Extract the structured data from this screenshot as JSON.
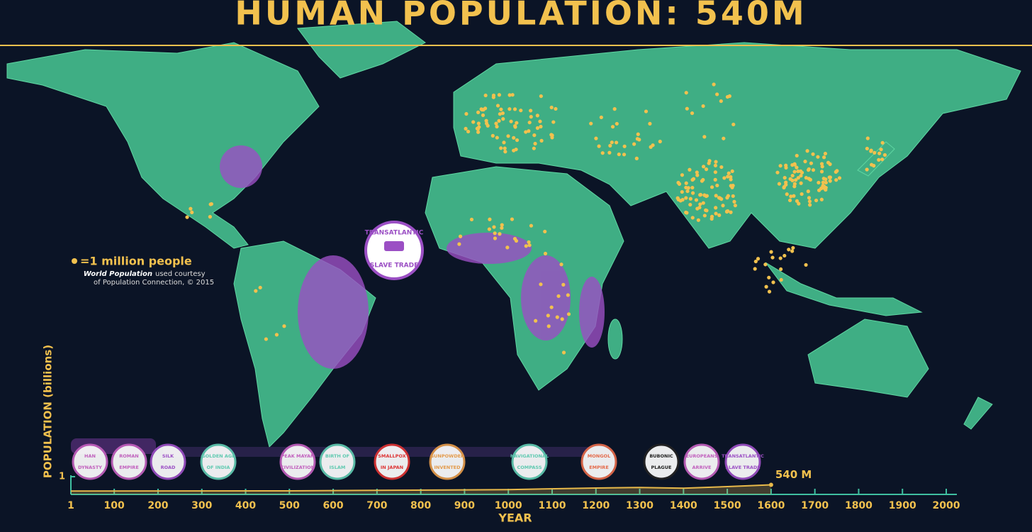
{
  "title": "HUMAN POPULATION: 540M",
  "legend": {
    "label": "=1 million people",
    "credit_italic": "World Population",
    "credit_rest": "used courtesy",
    "credit_line2": "of Population Connection, © 2015"
  },
  "callout": [
    "TRANSATLANTIC",
    "SLAVE TRADE"
  ],
  "events": [
    [
      "HAN",
      "DYNASTY"
    ],
    [
      "ROMAN",
      "EMPIRE"
    ],
    [
      "SILK",
      "ROAD"
    ],
    [
      "GOLDEN AGE",
      "OF INDIA"
    ],
    [
      "PEAK MAYAN",
      "CIVILIZATION"
    ],
    [
      "BIRTH OF",
      "ISLAM"
    ],
    [
      "SMALLPOX",
      "IN JAPAN"
    ],
    [
      "GUNPOWDER",
      "INVENTED"
    ],
    [
      "NAVIGATIONAL",
      "COMPASS"
    ],
    [
      "MONGOL",
      "EMPIRE"
    ],
    [
      "BUBONIC",
      "PLAGUE"
    ],
    [
      "EUROPEANS",
      "ARRIVE"
    ],
    [
      "TRANSATLANTIC",
      "SLAVE TRADE"
    ]
  ],
  "chart_data": {
    "type": "line",
    "x_label": "YEAR",
    "y_label": "POPULATION (billions)",
    "x": [
      1,
      500,
      1000,
      1200,
      1300,
      1400,
      1500,
      1600
    ],
    "values": [
      0.19,
      0.2,
      0.27,
      0.36,
      0.39,
      0.35,
      0.44,
      0.54
    ],
    "value_labels": [
      null,
      null,
      null,
      null,
      null,
      null,
      null,
      "540 M"
    ],
    "color": "#e8b94a",
    "xlim": [
      1,
      2000
    ],
    "xticks": [
      1,
      100,
      200,
      300,
      400,
      500,
      600,
      700,
      800,
      900,
      1000,
      1100,
      1200,
      1300,
      1400,
      1500,
      1600,
      1700,
      1800,
      1900,
      2000
    ],
    "ylim": [
      0,
      1
    ],
    "yticks": [
      1
    ]
  }
}
